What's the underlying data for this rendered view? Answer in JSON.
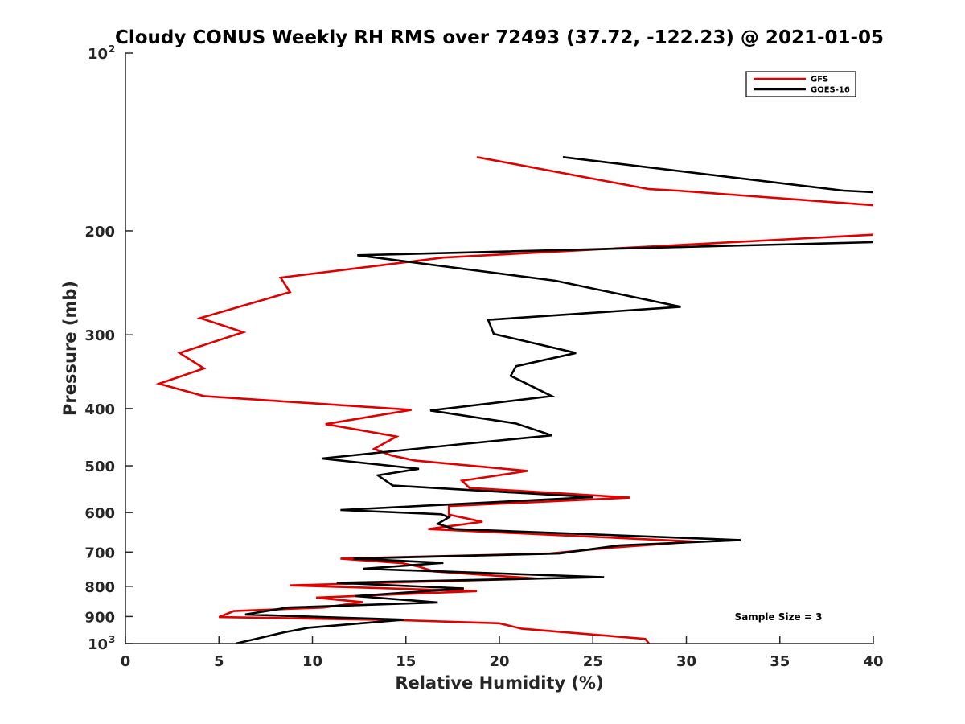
{
  "chart_data": {
    "type": "line",
    "title": "Cloudy CONUS Weekly RH RMS over 72493 (37.72, -122.23) @ 2021-01-05",
    "xlabel": "Relative Humidity (%)",
    "ylabel": "Pressure (mb)",
    "xlim": [
      0,
      40
    ],
    "ylim": [
      100,
      1000
    ],
    "y_scale": "log",
    "y_reversed": true,
    "grid": false,
    "legend_position": "top-right",
    "x_ticks": [
      "0",
      "5",
      "10",
      "15",
      "20",
      "25",
      "30",
      "35",
      "40"
    ],
    "y_ticks": [
      {
        "value": 100,
        "base": "10",
        "exp": "2"
      },
      {
        "value": 200,
        "label": "200"
      },
      {
        "value": 300,
        "label": "300"
      },
      {
        "value": 400,
        "label": "400"
      },
      {
        "value": 500,
        "label": "500"
      },
      {
        "value": 600,
        "label": "600"
      },
      {
        "value": 700,
        "label": "700"
      },
      {
        "value": 800,
        "label": "800"
      },
      {
        "value": 900,
        "label": "900"
      },
      {
        "value": 1000,
        "base": "10",
        "exp": "3"
      }
    ],
    "annotation": "Sample Size = 3",
    "series": [
      {
        "name": "GFS",
        "color": "#e00000",
        "points": [
          [
            18.8,
            150
          ],
          [
            28.0,
            170
          ],
          [
            29.5,
            171
          ],
          [
            40.0,
            181
          ],
          [
            40.0,
            203
          ],
          [
            17.0,
            222
          ],
          [
            8.3,
            240
          ],
          [
            8.8,
            254
          ],
          [
            4.0,
            281
          ],
          [
            6.3,
            297
          ],
          [
            2.9,
            322
          ],
          [
            4.2,
            342
          ],
          [
            1.8,
            363
          ],
          [
            4.2,
            381
          ],
          [
            15.3,
            402
          ],
          [
            10.7,
            425
          ],
          [
            14.5,
            446
          ],
          [
            13.3,
            468
          ],
          [
            14.2,
            480
          ],
          [
            15.5,
            490
          ],
          [
            21.5,
            510
          ],
          [
            18.0,
            530
          ],
          [
            18.4,
            545
          ],
          [
            27.0,
            566
          ],
          [
            17.3,
            585
          ],
          [
            17.3,
            605
          ],
          [
            19.1,
            622
          ],
          [
            16.2,
            640
          ],
          [
            30.5,
            672
          ],
          [
            26.0,
            688
          ],
          [
            22.7,
            704
          ],
          [
            11.5,
            718
          ],
          [
            14.8,
            731
          ],
          [
            15.7,
            741
          ],
          [
            16.5,
            755
          ],
          [
            22.0,
            776
          ],
          [
            8.8,
            797
          ],
          [
            18.8,
            815
          ],
          [
            10.2,
            836
          ],
          [
            12.7,
            851
          ],
          [
            10.6,
            869
          ],
          [
            5.8,
            881
          ],
          [
            5.0,
            902
          ],
          [
            14.8,
            913
          ],
          [
            20.0,
            924
          ],
          [
            21.2,
            944
          ],
          [
            27.8,
            982
          ],
          [
            28.0,
            1000
          ]
        ]
      },
      {
        "name": "GOES-16",
        "color": "#000000",
        "points": [
          [
            23.4,
            150
          ],
          [
            38.4,
            171
          ],
          [
            40.0,
            172
          ],
          [
            40.0,
            209
          ],
          [
            12.4,
            220
          ],
          [
            23.0,
            243
          ],
          [
            29.7,
            269
          ],
          [
            19.4,
            283
          ],
          [
            19.7,
            299
          ],
          [
            24.1,
            322
          ],
          [
            20.9,
            339
          ],
          [
            20.6,
            352
          ],
          [
            22.8,
            381
          ],
          [
            16.3,
            403
          ],
          [
            20.9,
            424
          ],
          [
            22.8,
            444
          ],
          [
            17.8,
            460
          ],
          [
            10.5,
            486
          ],
          [
            15.7,
            506
          ],
          [
            13.5,
            519
          ],
          [
            14.3,
            540
          ],
          [
            25.0,
            565
          ],
          [
            11.5,
            594
          ],
          [
            16.9,
            604
          ],
          [
            17.3,
            611
          ],
          [
            16.7,
            627
          ],
          [
            17.6,
            640
          ],
          [
            32.9,
            668
          ],
          [
            26.4,
            682
          ],
          [
            23.2,
            704
          ],
          [
            12.2,
            718
          ],
          [
            17.0,
            730
          ],
          [
            12.7,
            747
          ],
          [
            25.6,
            772
          ],
          [
            11.3,
            789
          ],
          [
            18.1,
            807
          ],
          [
            12.3,
            831
          ],
          [
            16.7,
            852
          ],
          [
            8.7,
            869
          ],
          [
            6.4,
            893
          ],
          [
            14.9,
            911
          ],
          [
            9.8,
            940
          ],
          [
            8.5,
            957
          ],
          [
            5.9,
            1000
          ]
        ]
      }
    ]
  }
}
